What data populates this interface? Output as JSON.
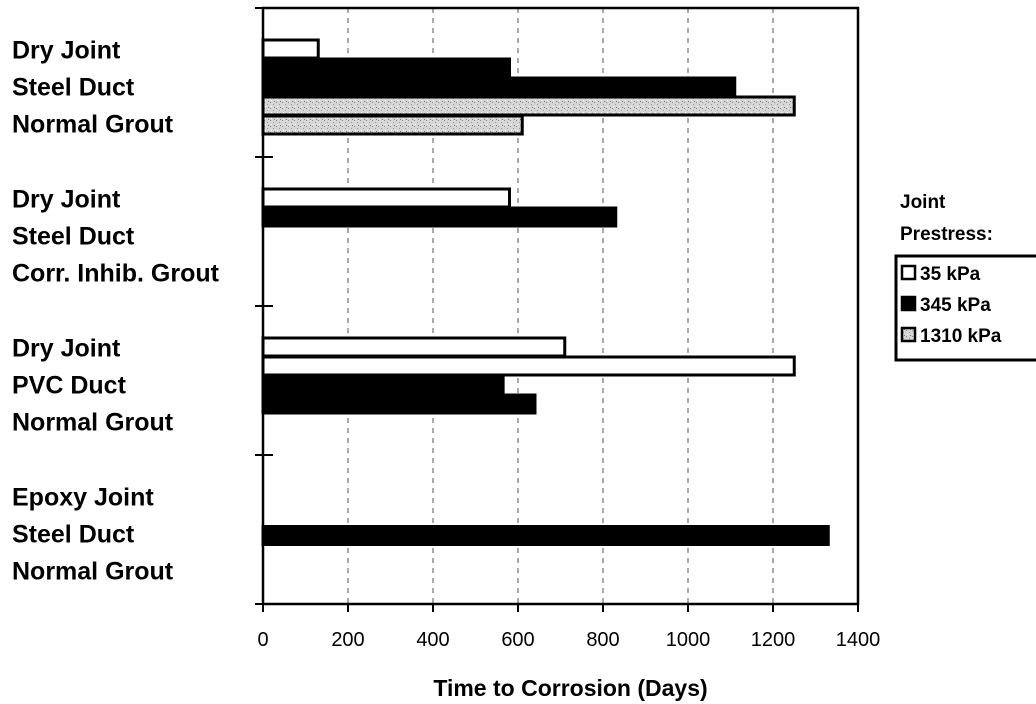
{
  "chart_data": {
    "type": "bar",
    "orientation": "horizontal",
    "grid": "vertical dashed",
    "legend_placement": "right",
    "xlabel": "Time to Corrosion  (Days)",
    "xlim": [
      0,
      1400
    ],
    "xticks": [
      0,
      200,
      400,
      600,
      800,
      1000,
      1200,
      1400
    ],
    "legend_title": [
      "Joint",
      "Prestress:"
    ],
    "series_styles": [
      {
        "name": "35 kPa",
        "fill": "#ffffff",
        "stroke": "#000000",
        "pattern": "solid"
      },
      {
        "name": "345 kPa",
        "fill": "#000000",
        "stroke": "#000000",
        "pattern": "solid"
      },
      {
        "name": "1310 kPa",
        "fill": "#cfcfcf",
        "stroke": "#000000",
        "pattern": "speckled"
      }
    ],
    "categories": [
      {
        "label_lines": [
          "Dry Joint",
          "Steel Duct",
          "Normal Grout"
        ],
        "bars": [
          {
            "series": "35 kPa",
            "value": 130
          },
          {
            "series": "345 kPa",
            "value": 580
          },
          {
            "series": "345 kPa",
            "value": 1110
          },
          {
            "series": "1310 kPa",
            "value": 1250
          },
          {
            "series": "1310 kPa",
            "value": 610
          }
        ]
      },
      {
        "label_lines": [
          "Dry Joint",
          "Steel Duct",
          "Corr. Inhib. Grout"
        ],
        "bars": [
          {
            "series": "35 kPa",
            "value": 580
          },
          {
            "series": "345 kPa",
            "value": 830
          }
        ]
      },
      {
        "label_lines": [
          "Dry Joint",
          "PVC Duct",
          "Normal Grout"
        ],
        "bars": [
          {
            "series": "35 kPa",
            "value": 710
          },
          {
            "series": "35 kPa",
            "value": 1250
          },
          {
            "series": "345 kPa",
            "value": 565
          },
          {
            "series": "345 kPa",
            "value": 640
          }
        ]
      },
      {
        "label_lines": [
          "Epoxy Joint",
          "Steel Duct",
          "Normal Grout"
        ],
        "bars": [
          {
            "series": "345 kPa",
            "value": 1330
          }
        ]
      }
    ]
  }
}
